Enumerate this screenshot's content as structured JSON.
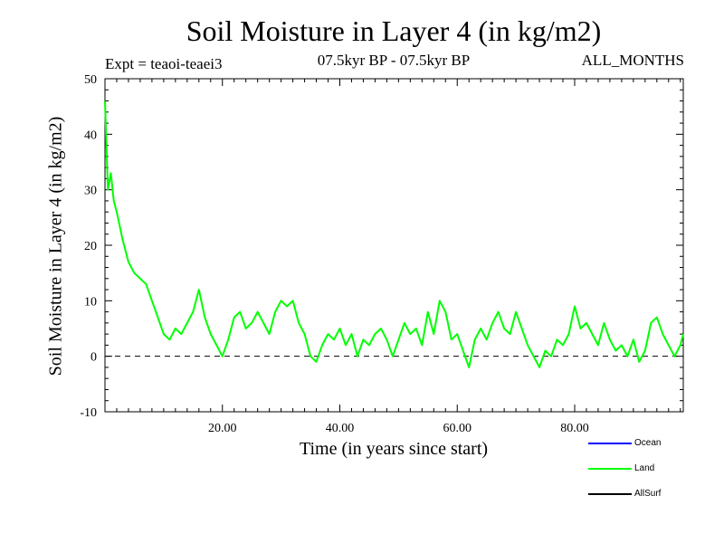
{
  "chart_data": {
    "type": "line",
    "title": "Soil Moisture in Layer 4 (in kg/m2)",
    "subtitle": "07.5kyr BP - 07.5kyr BP",
    "experiment": "Expt = teaoi-teaei3",
    "period": "ALL_MONTHS",
    "xlabel": "Time (in years since start)",
    "ylabel": "Soil Moisture in Layer 4 (in kg/m2)",
    "xlim": [
      0,
      98.5
    ],
    "ylim": [
      -10,
      50
    ],
    "x_ticks": [
      20,
      40,
      60,
      80
    ],
    "x_tick_labels": [
      "20.00",
      "40.00",
      "60.00",
      "80.00"
    ],
    "y_ticks": [
      -10,
      0,
      10,
      20,
      30,
      40,
      50
    ],
    "y_tick_labels": [
      "-10",
      "0",
      "10",
      "20",
      "30",
      "40",
      "50"
    ],
    "reference_line": 0,
    "legend": [
      {
        "name": "Ocean",
        "color": "#0000ff"
      },
      {
        "name": "Land",
        "color": "#00ff00"
      },
      {
        "name": "AllSurf",
        "color": "#000000"
      }
    ],
    "series": [
      {
        "name": "Land",
        "color": "#00ff00",
        "x": [
          0,
          0.25,
          0.5,
          1,
          1.5,
          2,
          3,
          4,
          5,
          6,
          7,
          8,
          9,
          10,
          11,
          12,
          13,
          14,
          15,
          16,
          17,
          18,
          19,
          20,
          21,
          22,
          23,
          24,
          25,
          26,
          27,
          28,
          29,
          30,
          31,
          32,
          33,
          34,
          35,
          36,
          37,
          38,
          39,
          40,
          41,
          42,
          43,
          44,
          45,
          46,
          47,
          48,
          49,
          50,
          51,
          52,
          53,
          54,
          55,
          56,
          57,
          58,
          59,
          60,
          61,
          62,
          63,
          64,
          65,
          66,
          67,
          68,
          69,
          70,
          71,
          72,
          73,
          74,
          75,
          76,
          77,
          78,
          79,
          80,
          81,
          82,
          83,
          84,
          85,
          86,
          87,
          88,
          89,
          90,
          91,
          92,
          93,
          94,
          95,
          96,
          97,
          98,
          98.5
        ],
        "values": [
          46,
          38,
          30,
          33,
          28,
          26,
          21,
          17,
          15,
          14,
          13,
          10,
          7,
          4,
          3,
          5,
          4,
          6,
          8,
          12,
          7,
          4,
          2,
          0,
          3,
          7,
          8,
          5,
          6,
          8,
          6,
          4,
          8,
          10,
          9,
          10,
          6,
          4,
          0,
          -1,
          2,
          4,
          3,
          5,
          2,
          4,
          0,
          3,
          2,
          4,
          5,
          3,
          0,
          3,
          6,
          4,
          5,
          2,
          8,
          4,
          10,
          8,
          3,
          4,
          1,
          -2,
          3,
          5,
          3,
          6,
          8,
          5,
          4,
          8,
          5,
          2,
          0,
          -2,
          1,
          0,
          3,
          2,
          4,
          9,
          5,
          6,
          4,
          2,
          6,
          3,
          1,
          2,
          0,
          3,
          -1,
          1,
          6,
          7,
          4,
          2,
          0,
          2,
          4
        ]
      }
    ]
  }
}
